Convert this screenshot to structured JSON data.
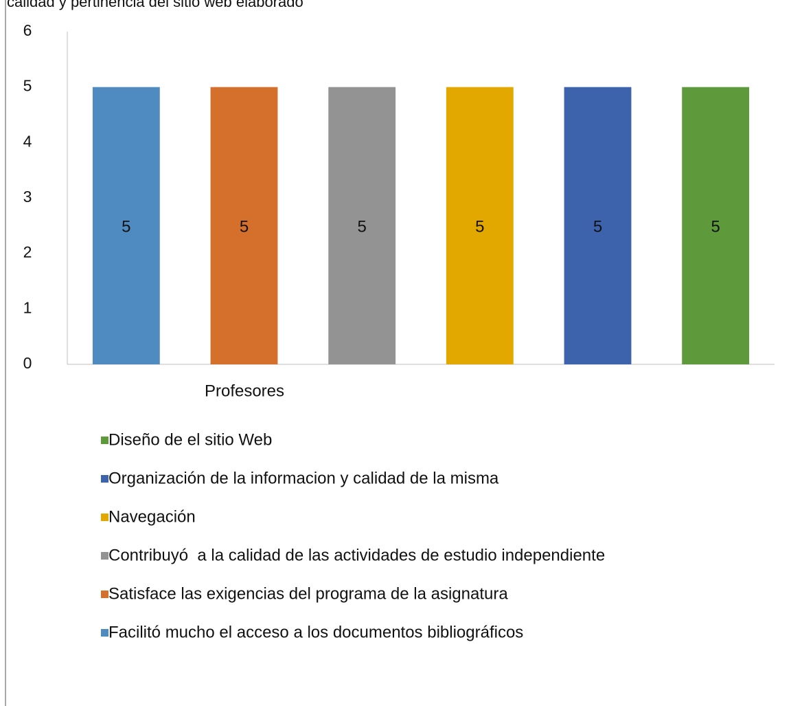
{
  "chart_data": {
    "type": "bar",
    "title": "calidad y pertinencia del sitio web elaborado",
    "categories": [
      "Profesores"
    ],
    "series": [
      {
        "name": "Facilitó mucho el acceso a los documentos bibliográficos",
        "color": "#4f8bc0",
        "values": [
          5
        ]
      },
      {
        "name": "Satisface las exigencias del programa de la asignatura",
        "color": "#d46f2c",
        "values": [
          5
        ]
      },
      {
        "name": "Contribuyó  a la calidad de las actividades de estudio independiente",
        "color": "#939393",
        "values": [
          5
        ]
      },
      {
        "name": "Navegación",
        "color": "#e3a800",
        "values": [
          5
        ]
      },
      {
        "name": "Organización de la informacion y calidad de la misma",
        "color": "#3e63ad",
        "values": [
          5
        ]
      },
      {
        "name": "Diseño de el sitio Web",
        "color": "#5e9a3c",
        "values": [
          5
        ]
      }
    ],
    "ylim": [
      0,
      6
    ],
    "yticks": [
      0,
      1,
      2,
      3,
      4,
      5,
      6
    ],
    "grid": false,
    "legend": "bottom"
  }
}
